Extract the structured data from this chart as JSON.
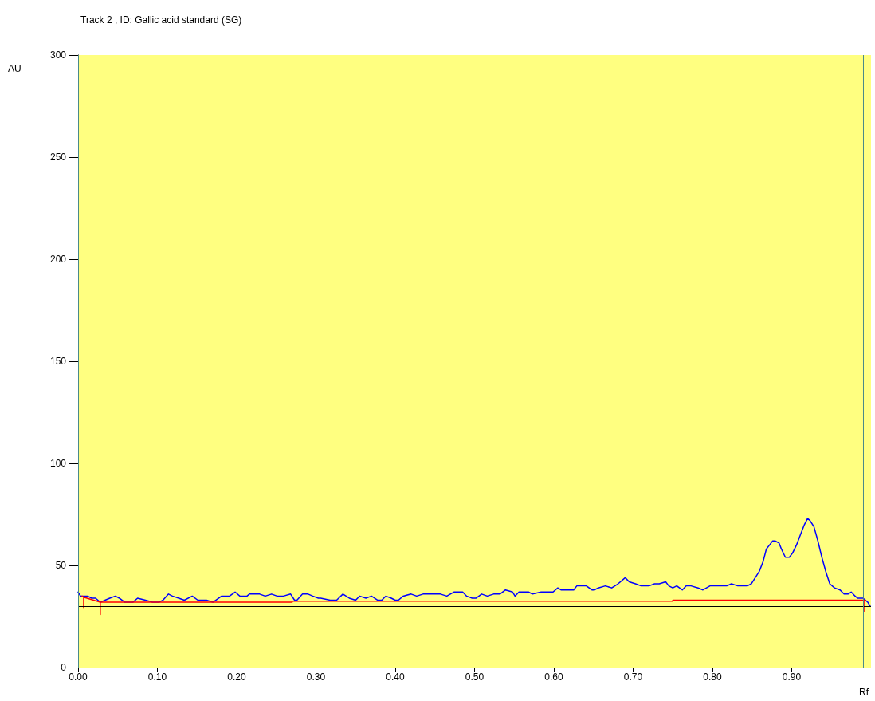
{
  "chart_data": {
    "type": "line",
    "title": "Track 2 , ID: Gallic acid standard (SG)",
    "xlabel": "Rf",
    "ylabel": "AU",
    "xlim": [
      0,
      1
    ],
    "xticks": [
      {
        "value": 0,
        "label": "0.00"
      },
      {
        "value": 0.1,
        "label": "0.10"
      },
      {
        "value": 0.2,
        "label": "0.20"
      },
      {
        "value": 0.3,
        "label": "0.30"
      },
      {
        "value": 0.4,
        "label": "0.40"
      },
      {
        "value": 0.5,
        "label": "0.50"
      },
      {
        "value": 0.6,
        "label": "0.60"
      },
      {
        "value": 0.7,
        "label": "0.70"
      },
      {
        "value": 0.8,
        "label": "0.80"
      },
      {
        "value": 0.9,
        "label": "0.90"
      }
    ],
    "ylim": [
      0,
      300
    ],
    "yticks": [
      0,
      50,
      100,
      150,
      200,
      250,
      300
    ],
    "grid": false,
    "marker": "none",
    "line_style": "solid",
    "series": [
      {
        "color": "#0000ff",
        "x": [
          0,
          0.003,
          0.008,
          0.012,
          0.017,
          0.022,
          0.028,
          0.034,
          0.04,
          0.047,
          0.052,
          0.059,
          0.069,
          0.075,
          0.085,
          0.094,
          0.102,
          0.107,
          0.114,
          0.119,
          0.127,
          0.134,
          0.144,
          0.151,
          0.162,
          0.17,
          0.181,
          0.191,
          0.198,
          0.204,
          0.213,
          0.216,
          0.229,
          0.236,
          0.244,
          0.251,
          0.259,
          0.268,
          0.273,
          0.276,
          0.283,
          0.29,
          0.296,
          0.303,
          0.306,
          0.318,
          0.326,
          0.334,
          0.342,
          0.35,
          0.355,
          0.363,
          0.37,
          0.378,
          0.383,
          0.388,
          0.395,
          0.4,
          0.404,
          0.41,
          0.42,
          0.427,
          0.435,
          0.44,
          0.45,
          0.457,
          0.465,
          0.474,
          0.485,
          0.49,
          0.497,
          0.502,
          0.509,
          0.516,
          0.524,
          0.532,
          0.539,
          0.548,
          0.551,
          0.556,
          0.568,
          0.573,
          0.584,
          0.594,
          0.599,
          0.605,
          0.609,
          0.616,
          0.619,
          0.625,
          0.629,
          0.641,
          0.648,
          0.651,
          0.656,
          0.665,
          0.673,
          0.681,
          0.69,
          0.695,
          0.703,
          0.71,
          0.715,
          0.72,
          0.727,
          0.733,
          0.741,
          0.745,
          0.75,
          0.755,
          0.762,
          0.767,
          0.773,
          0.782,
          0.788,
          0.797,
          0.809,
          0.818,
          0.824,
          0.832,
          0.844,
          0.849,
          0.854,
          0.859,
          0.864,
          0.868,
          0.872,
          0.876,
          0.879,
          0.884,
          0.887,
          0.892,
          0.897,
          0.901,
          0.906,
          0.911,
          0.916,
          0.92,
          0.923,
          0.928,
          0.933,
          0.938,
          0.943,
          0.948,
          0.954,
          0.961,
          0.966,
          0.971,
          0.975,
          0.98,
          0.983,
          0.99,
          0.993,
          0.996,
          0.999
        ],
        "values": [
          37,
          35,
          35,
          35,
          34,
          34,
          32,
          33,
          34,
          35,
          34,
          32,
          32,
          34,
          33,
          32,
          32,
          33,
          36,
          35,
          34,
          33,
          35,
          33,
          33,
          32,
          35,
          35,
          37,
          35,
          35,
          36,
          36,
          35,
          36,
          35,
          35,
          36,
          33,
          33,
          36,
          36,
          35,
          34,
          34,
          33,
          33,
          36,
          34,
          33,
          35,
          34,
          35,
          33,
          33,
          35,
          34,
          33,
          33,
          35,
          36,
          35,
          36,
          36,
          36,
          36,
          35,
          37,
          37,
          35,
          34,
          34,
          36,
          35,
          36,
          36,
          38,
          37,
          35,
          37,
          37,
          36,
          37,
          37,
          37,
          39,
          38,
          38,
          38,
          38,
          40,
          40,
          38,
          38,
          39,
          40,
          39,
          41,
          44,
          42,
          41,
          40,
          40,
          40,
          41,
          41,
          42,
          40,
          39,
          40,
          38,
          40,
          40,
          39,
          38,
          40,
          40,
          40,
          41,
          40,
          40,
          41,
          44,
          47,
          52,
          58,
          60,
          62,
          62,
          61,
          58,
          54,
          54,
          56,
          60,
          65,
          70,
          73,
          72,
          69,
          62,
          54,
          47,
          41,
          39,
          38,
          36,
          36,
          37,
          35,
          34,
          34,
          33,
          32,
          30
        ]
      },
      {
        "color": "#ff0000",
        "x": [
          0.005,
          0.007,
          0.007,
          0.007,
          0.028,
          0.028,
          0.028,
          0.27,
          0.27,
          0.75,
          0.75,
          0.991,
          0.991,
          0.991,
          0.993
        ],
        "values": [
          35,
          34.5,
          29,
          34.5,
          32,
          26,
          32,
          32,
          32.5,
          32.5,
          33,
          33,
          27.5,
          33,
          33
        ]
      }
    ],
    "ref_lines": [
      {
        "axis": "y",
        "value": 30,
        "color": "#000000"
      },
      {
        "axis": "x",
        "value": 0.003,
        "color": "#4a8a8a"
      },
      {
        "axis": "x",
        "value": 0.992,
        "color": "#4a8a8a"
      }
    ]
  }
}
